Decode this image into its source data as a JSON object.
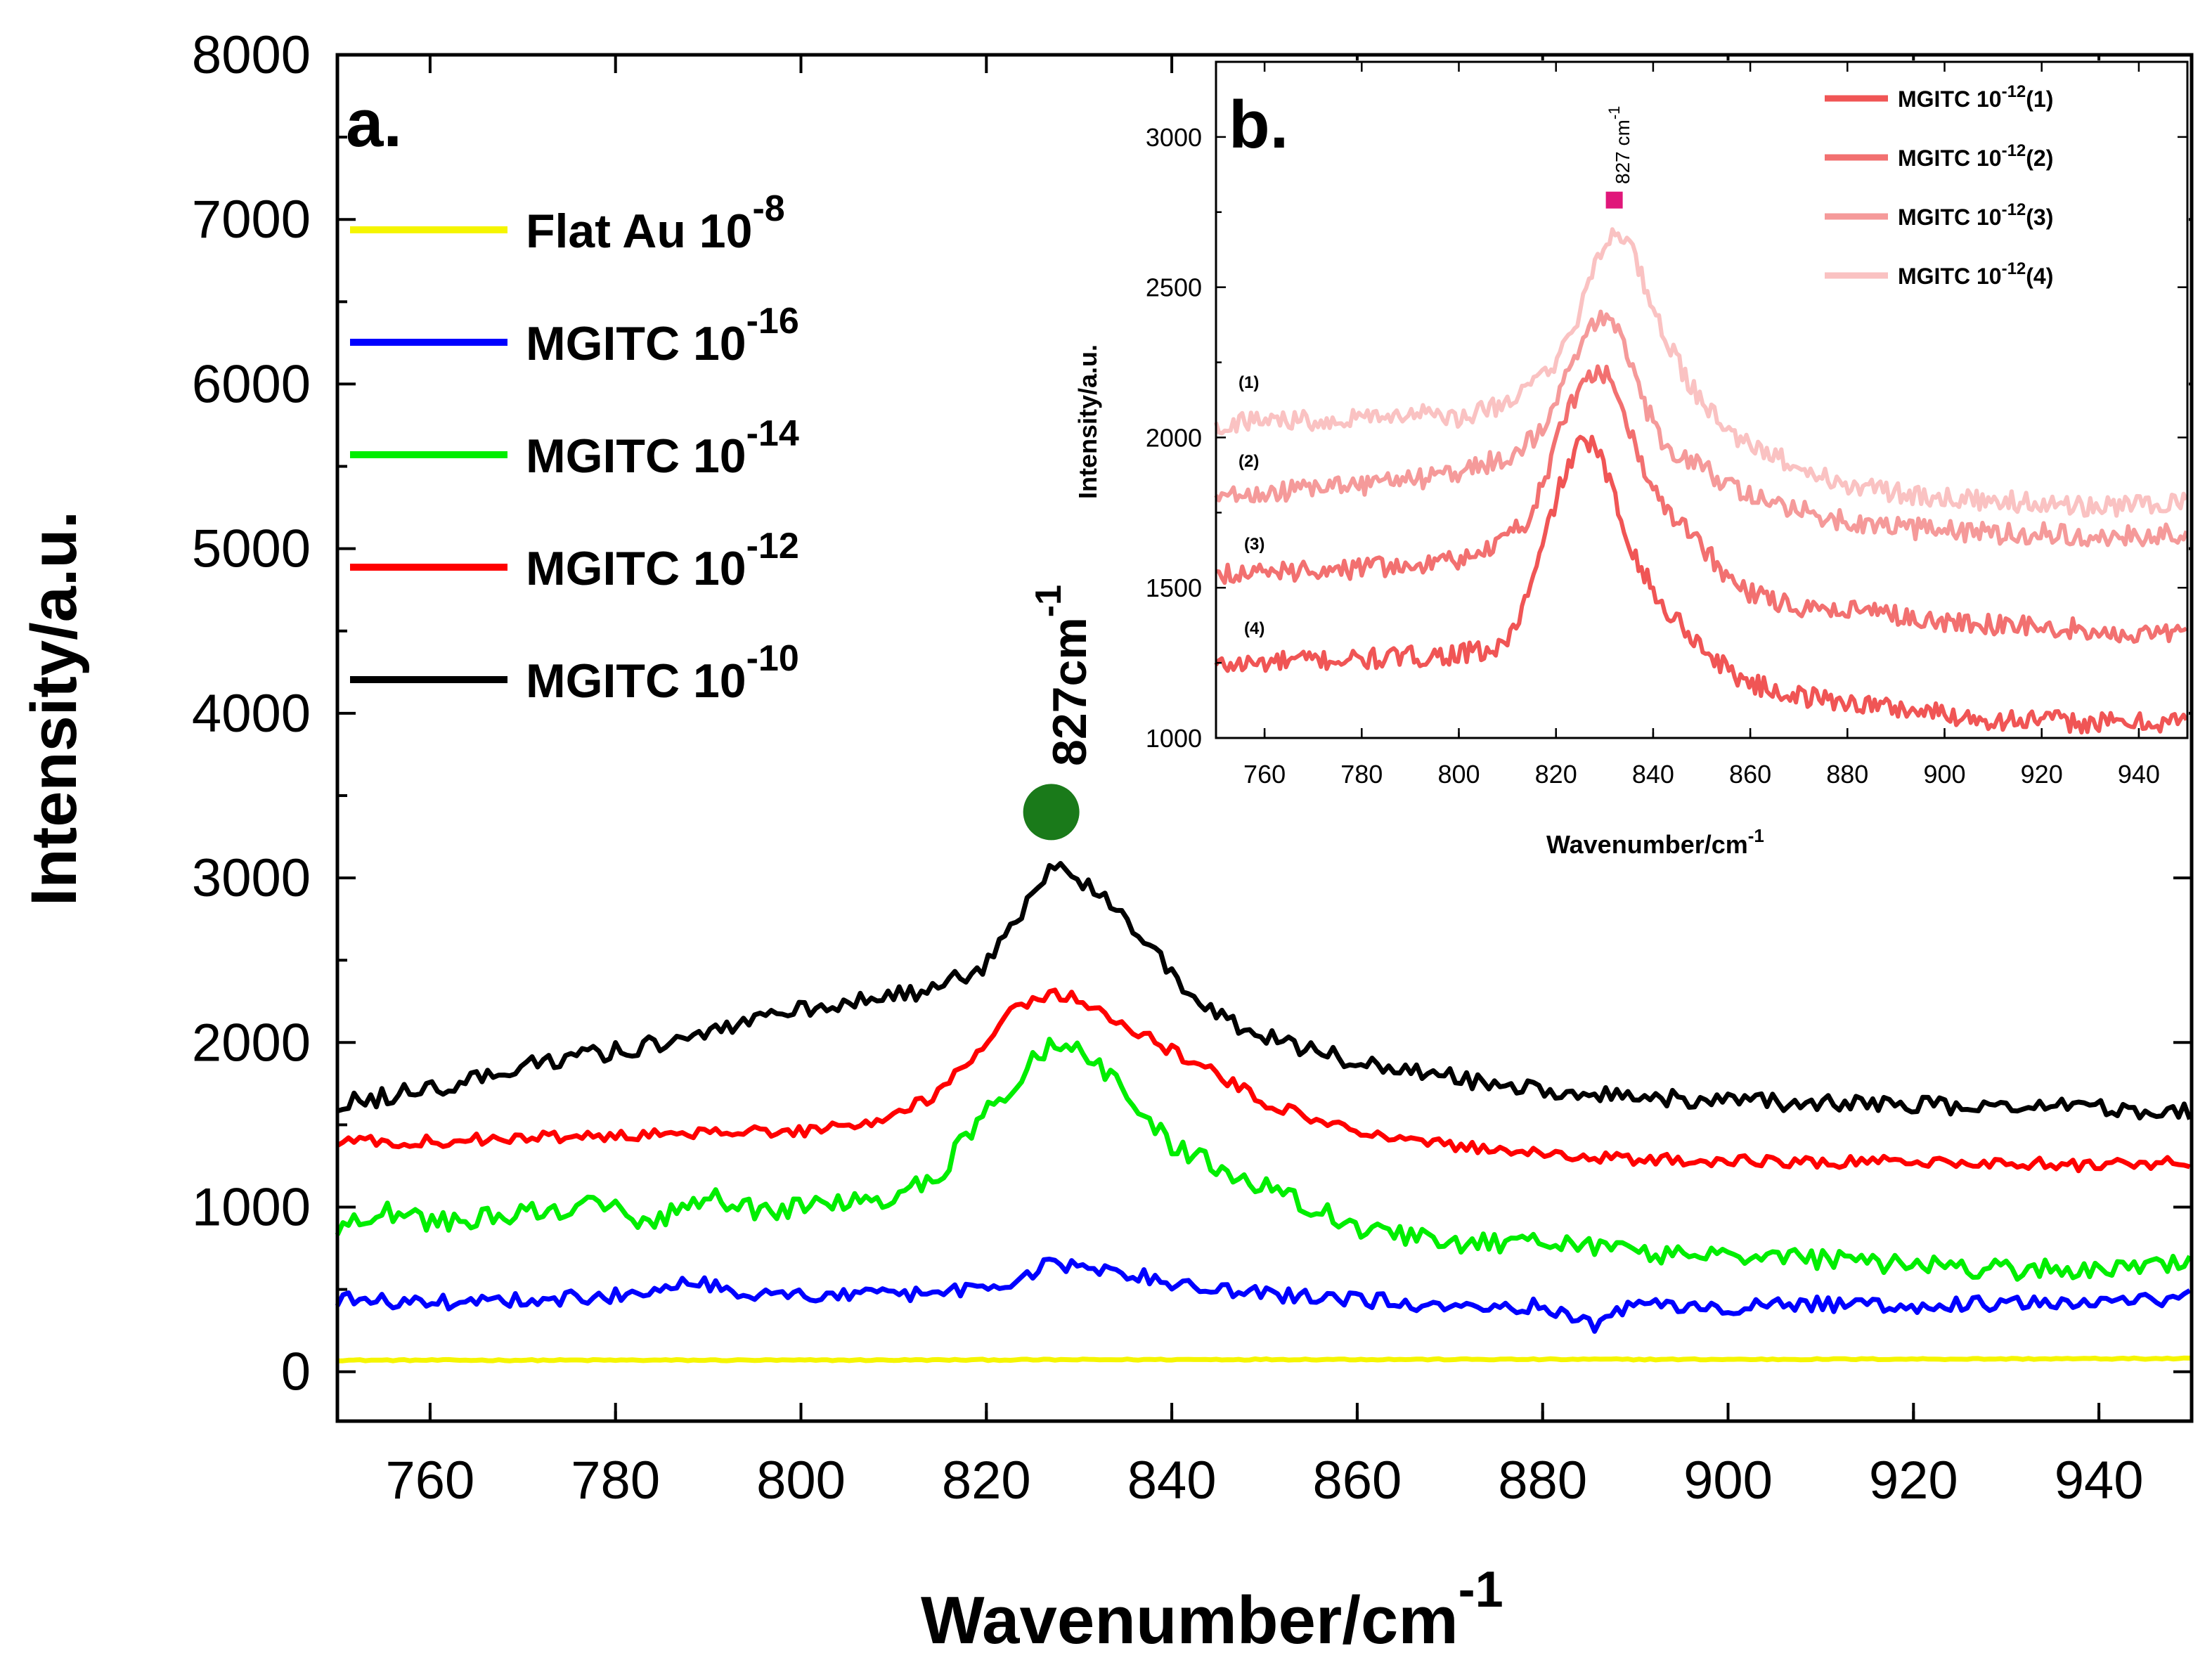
{
  "chart_data": [
    {
      "panel": "a.",
      "type": "line",
      "xlabel": "Wavenumber/cm",
      "xlabel_superscript": "-1",
      "ylabel": "Intensity/a.u.",
      "xlim": [
        750,
        950
      ],
      "ylim": [
        -300,
        8000
      ],
      "xticks": [
        "760",
        "780",
        "800",
        "820",
        "840",
        "860",
        "880",
        "900",
        "920",
        "940"
      ],
      "yticks": [
        "0",
        "1000",
        "2000",
        "3000",
        "4000",
        "5000",
        "6000",
        "7000",
        "8000"
      ],
      "peak_label": "827cm",
      "peak_superscript": "-1",
      "peak_marker": {
        "x": 827,
        "y": 3400,
        "color": "#1a7a1a"
      },
      "series": [
        {
          "name": "Flat Au 10",
          "superscript": "-8",
          "color": "#f5f500",
          "x": [
            750,
            800,
            850,
            900,
            950
          ],
          "y": [
            70,
            70,
            75,
            75,
            80
          ]
        },
        {
          "name": "MGITC 10",
          "superscript": "-16",
          "color": "#0000ff",
          "x": [
            750,
            760,
            770,
            780,
            788,
            795,
            800,
            810,
            820,
            825,
            827,
            830,
            835,
            840,
            845,
            850,
            860,
            870,
            880,
            886,
            890,
            900,
            910,
            920,
            930,
            940,
            950
          ],
          "y": [
            440,
            420,
            440,
            460,
            560,
            470,
            460,
            470,
            500,
            600,
            660,
            630,
            600,
            540,
            500,
            470,
            440,
            400,
            400,
            280,
            420,
            390,
            410,
            400,
            420,
            410,
            460
          ]
        },
        {
          "name": "MGITC 10",
          "superscript": "-14",
          "color": "#00ee00",
          "x": [
            750,
            755,
            760,
            770,
            780,
            783,
            790,
            795,
            800,
            810,
            815,
            818,
            822,
            825,
            827,
            830,
            835,
            840,
            845,
            850,
            855,
            860,
            870,
            880,
            890,
            900,
            910,
            920,
            930,
            940,
            950
          ],
          "y": [
            880,
            980,
            900,
            960,
            1020,
            880,
            1080,
            980,
            1000,
            1060,
            1200,
            1450,
            1700,
            1880,
            2000,
            1950,
            1700,
            1380,
            1250,
            1120,
            1000,
            880,
            780,
            780,
            720,
            700,
            680,
            650,
            620,
            620,
            650
          ]
        },
        {
          "name": "MGITC 10",
          "superscript": "-12",
          "color": "#ff0000",
          "x": [
            750,
            760,
            770,
            780,
            790,
            800,
            810,
            815,
            820,
            823,
            827,
            830,
            835,
            840,
            845,
            850,
            860,
            870,
            880,
            890,
            900,
            910,
            920,
            930,
            940,
            950
          ],
          "y": [
            1400,
            1400,
            1420,
            1430,
            1450,
            1460,
            1550,
            1700,
            2000,
            2200,
            2300,
            2270,
            2100,
            1950,
            1800,
            1640,
            1460,
            1380,
            1320,
            1290,
            1280,
            1270,
            1280,
            1270,
            1250,
            1280
          ]
        },
        {
          "name": "MGITC 10",
          "superscript": "-10",
          "color": "#000000",
          "x": [
            750,
            760,
            770,
            780,
            790,
            800,
            810,
            815,
            820,
            823,
            827,
            830,
            833,
            837,
            840,
            845,
            850,
            855,
            860,
            870,
            880,
            890,
            900,
            910,
            920,
            930,
            940,
            950
          ],
          "y": [
            1620,
            1720,
            1850,
            1950,
            2050,
            2200,
            2280,
            2330,
            2480,
            2700,
            3080,
            3000,
            2850,
            2650,
            2400,
            2150,
            2050,
            1950,
            1880,
            1790,
            1700,
            1660,
            1650,
            1630,
            1620,
            1610,
            1600,
            1580
          ]
        }
      ]
    },
    {
      "panel": "b.",
      "type": "line",
      "xlabel": "Wavenumber/cm",
      "xlabel_superscript": "-1",
      "ylabel": "Intensity/a.u.",
      "xlim": [
        750,
        950
      ],
      "ylim": [
        1000,
        3250
      ],
      "xticks": [
        "760",
        "780",
        "800",
        "820",
        "840",
        "860",
        "880",
        "900",
        "920",
        "940"
      ],
      "yticks": [
        "1000",
        "1500",
        "2000",
        "2500",
        "3000"
      ],
      "peak_label": "827 cm",
      "peak_superscript": "-1",
      "peak_marker": {
        "x": 832,
        "y": 2790,
        "color": "#e0177a"
      },
      "curve_labels": [
        "(1)",
        "(2)",
        "(3)",
        "(4)"
      ],
      "series": [
        {
          "name": "MGITC 10",
          "superscript": "-12",
          "suffix": "(1)",
          "color": "#f05555",
          "x": [
            750,
            760,
            770,
            780,
            790,
            800,
            808,
            812,
            816,
            820,
            824,
            827,
            830,
            834,
            838,
            842,
            846,
            850,
            856,
            862,
            870,
            880,
            890,
            900,
            910,
            920,
            930,
            940,
            950
          ],
          "y": [
            1240,
            1250,
            1260,
            1260,
            1270,
            1280,
            1290,
            1380,
            1560,
            1800,
            1960,
            1990,
            1900,
            1700,
            1550,
            1430,
            1380,
            1300,
            1220,
            1170,
            1140,
            1120,
            1100,
            1080,
            1060,
            1060,
            1050,
            1050,
            1060
          ]
        },
        {
          "name": "MGITC 10",
          "superscript": "-12",
          "suffix": "(2)",
          "color": "#f27070",
          "x": [
            750,
            760,
            770,
            780,
            790,
            800,
            808,
            814,
            818,
            822,
            826,
            830,
            834,
            838,
            842,
            846,
            850,
            856,
            862,
            870,
            880,
            890,
            900,
            910,
            920,
            930,
            940,
            950
          ],
          "y": [
            1550,
            1550,
            1560,
            1560,
            1580,
            1590,
            1640,
            1720,
            1880,
            2080,
            2180,
            2220,
            2080,
            1880,
            1760,
            1700,
            1640,
            1520,
            1470,
            1440,
            1420,
            1410,
            1390,
            1380,
            1370,
            1360,
            1350,
            1360
          ]
        },
        {
          "name": "MGITC 10",
          "superscript": "-12",
          "suffix": "(3)",
          "color": "#f59a9a",
          "x": [
            750,
            760,
            770,
            780,
            790,
            800,
            810,
            816,
            820,
            824,
            828,
            831,
            834,
            838,
            842,
            846,
            850,
            856,
            862,
            870,
            880,
            890,
            900,
            910,
            920,
            930,
            940,
            950
          ],
          "y": [
            1800,
            1820,
            1830,
            1840,
            1860,
            1880,
            1940,
            2000,
            2120,
            2260,
            2380,
            2400,
            2300,
            2120,
            1980,
            1930,
            1900,
            1840,
            1800,
            1760,
            1720,
            1700,
            1690,
            1680,
            1680,
            1670,
            1670,
            1680
          ]
        },
        {
          "name": "MGITC 10",
          "superscript": "-12",
          "suffix": "(4)",
          "color": "#fac2c2",
          "x": [
            750,
            760,
            770,
            780,
            790,
            800,
            810,
            816,
            820,
            824,
            828,
            832,
            835,
            838,
            842,
            846,
            850,
            856,
            862,
            870,
            880,
            890,
            900,
            910,
            920,
            930,
            940,
            950
          ],
          "y": [
            2040,
            2060,
            2060,
            2070,
            2080,
            2060,
            2120,
            2180,
            2240,
            2380,
            2560,
            2700,
            2660,
            2520,
            2340,
            2220,
            2120,
            2000,
            1960,
            1900,
            1840,
            1820,
            1800,
            1790,
            1780,
            1770,
            1770,
            1780
          ]
        }
      ]
    }
  ]
}
